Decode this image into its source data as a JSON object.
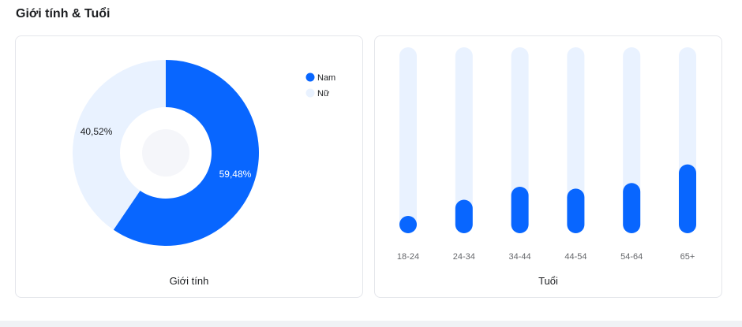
{
  "section": {
    "title": "Giới tính & Tuổi"
  },
  "colors": {
    "primary": "#0866ff",
    "light": "#e9f2ff",
    "center": "#f5f6fa"
  },
  "chart_data": [
    {
      "type": "pie",
      "title": "Giới tính",
      "donut": true,
      "legend_position": "top-right",
      "series": [
        {
          "name": "Nam",
          "value": 59.48,
          "label": "59,48%"
        },
        {
          "name": "Nữ",
          "value": 40.52,
          "label": "40,52%"
        }
      ]
    },
    {
      "type": "bar",
      "title": "Tuổi",
      "categories": [
        "18-24",
        "24-34",
        "34-44",
        "44-54",
        "54-64",
        "65+"
      ],
      "values": [
        8,
        18,
        25,
        24,
        27,
        37
      ],
      "ylim": [
        0,
        100
      ]
    }
  ]
}
